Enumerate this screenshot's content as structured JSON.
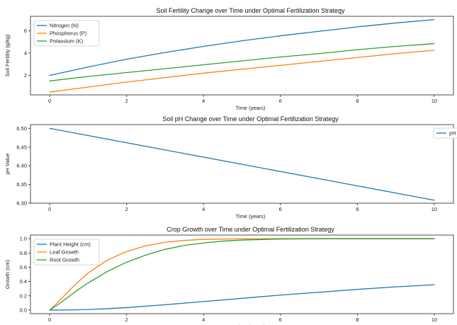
{
  "chart_data": [
    {
      "type": "line",
      "title": "Soil Fertility Change over Time under Optimal Fertilization Strategy",
      "xlabel": "Time (years)",
      "ylabel": "Soil Fertility (g/kg)",
      "xlim": [
        -0.5,
        10.5
      ],
      "ylim": [
        0.25,
        7.3
      ],
      "xticks": [
        0,
        2,
        4,
        6,
        8,
        10
      ],
      "yticks": [
        2,
        4,
        6
      ],
      "legend": "top-left",
      "grid": false,
      "series": [
        {
          "name": "Nitrogen (N)",
          "color": "#1f77b4",
          "x": [
            0,
            1,
            2,
            3,
            4,
            5,
            6,
            7,
            8,
            9,
            10
          ],
          "y": [
            2.0,
            2.75,
            3.45,
            4.05,
            4.6,
            5.1,
            5.55,
            5.95,
            6.35,
            6.7,
            7.0
          ]
        },
        {
          "name": "Phosphorus (P)",
          "color": "#ff7f0e",
          "x": [
            0,
            1,
            2,
            3,
            4,
            5,
            6,
            7,
            8,
            9,
            10
          ],
          "y": [
            0.5,
            0.95,
            1.4,
            1.8,
            2.2,
            2.55,
            2.9,
            3.25,
            3.6,
            3.95,
            4.25
          ]
        },
        {
          "name": "Potassium (K)",
          "color": "#2ca02c",
          "x": [
            0,
            1,
            2,
            3,
            4,
            5,
            6,
            7,
            8,
            9,
            10
          ],
          "y": [
            1.5,
            1.9,
            2.25,
            2.6,
            2.95,
            3.3,
            3.65,
            3.95,
            4.3,
            4.6,
            4.85
          ]
        }
      ]
    },
    {
      "type": "line",
      "title": "Soil pH Change over Time under Optimal Fertilization Strategy",
      "xlabel": "Time (years)",
      "ylabel": "pH Value",
      "xlim": [
        -0.5,
        10.5
      ],
      "ylim": [
        6.3,
        6.51
      ],
      "xticks": [
        0,
        2,
        4,
        6,
        8,
        10
      ],
      "yticks": [
        6.3,
        6.35,
        6.4,
        6.45,
        6.5
      ],
      "ytick_labels": [
        "6.30",
        "6.35",
        "6.40",
        "6.45",
        "6.50"
      ],
      "legend": "top-right",
      "grid": false,
      "series": [
        {
          "name": "pH",
          "color": "#1f77b4",
          "x": [
            0,
            10
          ],
          "y": [
            6.5,
            6.308
          ]
        }
      ]
    },
    {
      "type": "line",
      "title": "Crop Growth over Time under Optimal Fertilization Strategy",
      "xlabel": "Time (years)",
      "ylabel": "Growth (cm)",
      "xlim": [
        -0.5,
        10.5
      ],
      "ylim": [
        -0.05,
        1.05
      ],
      "xticks": [
        0,
        2,
        4,
        6,
        8,
        10
      ],
      "yticks": [
        0.0,
        0.2,
        0.4,
        0.6,
        0.8,
        1.0
      ],
      "ytick_labels": [
        "0.0",
        "0.2",
        "0.4",
        "0.6",
        "0.8",
        "1.0"
      ],
      "legend": "top-left",
      "grid": false,
      "series": [
        {
          "name": "Plant Height (cm)",
          "color": "#1f77b4",
          "x": [
            0,
            0.5,
            1,
            1.5,
            2,
            3,
            4,
            5,
            6,
            7,
            8,
            9,
            10
          ],
          "y": [
            0.0,
            0.002,
            0.008,
            0.02,
            0.035,
            0.075,
            0.12,
            0.165,
            0.21,
            0.25,
            0.29,
            0.325,
            0.355
          ]
        },
        {
          "name": "Leaf Growth",
          "color": "#ff7f0e",
          "x": [
            0,
            0.25,
            0.5,
            0.75,
            1,
            1.5,
            2,
            2.5,
            3,
            3.5,
            4,
            5,
            6,
            7,
            8,
            9,
            10
          ],
          "y": [
            0.0,
            0.13,
            0.27,
            0.4,
            0.52,
            0.7,
            0.82,
            0.9,
            0.95,
            0.975,
            0.99,
            0.998,
            1.0,
            1.0,
            1.0,
            1.0,
            1.0
          ]
        },
        {
          "name": "Root Growth",
          "color": "#2ca02c",
          "x": [
            0,
            0.25,
            0.5,
            0.75,
            1,
            1.5,
            2,
            2.5,
            3,
            3.5,
            4,
            4.5,
            5,
            6,
            7,
            8,
            9,
            10
          ],
          "y": [
            0.0,
            0.09,
            0.19,
            0.29,
            0.38,
            0.54,
            0.67,
            0.77,
            0.85,
            0.905,
            0.94,
            0.965,
            0.98,
            0.995,
            1.0,
            1.0,
            1.0,
            1.0
          ]
        }
      ]
    }
  ]
}
